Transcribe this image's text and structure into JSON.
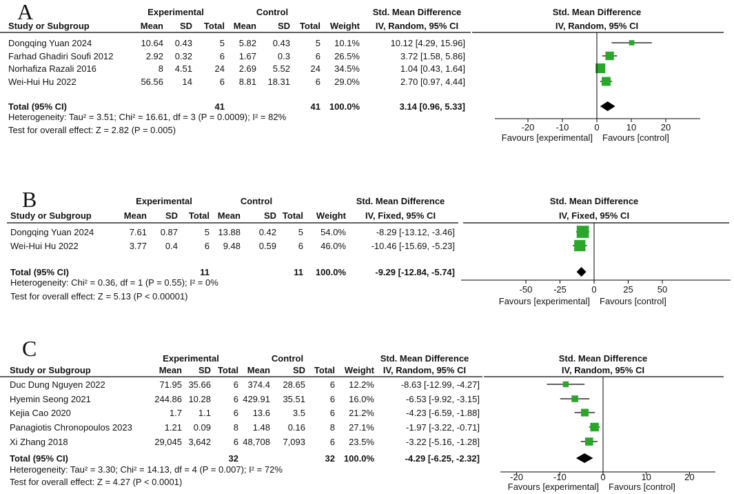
{
  "chart_data": [
    {
      "type": "forest",
      "panel": "A",
      "header": {
        "group1": "Experimental",
        "group2": "Control",
        "effect_measure": "Std. Mean Difference",
        "effect_method": "IV, Random, 95% CI",
        "plot_title": "Std. Mean Difference",
        "plot_method": "IV, Random, 95% CI",
        "cols": [
          "Study or Subgroup",
          "Mean",
          "SD",
          "Total",
          "Mean",
          "SD",
          "Total",
          "Weight"
        ]
      },
      "studies": [
        {
          "name": "Dongqing Yuan 2024",
          "e_mean": "10.64",
          "e_sd": "0.43",
          "e_total": "5",
          "c_mean": "5.82",
          "c_sd": "0.43",
          "c_total": "5",
          "weight": "10.1%",
          "ci_text": "10.12 [4.29, 15.96]",
          "est": 10.12,
          "lo": 4.29,
          "hi": 15.96
        },
        {
          "name": "Farhad Ghadiri Soufi 2012",
          "e_mean": "2.92",
          "e_sd": "0.32",
          "e_total": "6",
          "c_mean": "1.67",
          "c_sd": "0.3",
          "c_total": "6",
          "weight": "26.5%",
          "ci_text": "3.72 [1.58, 5.86]",
          "est": 3.72,
          "lo": 1.58,
          "hi": 5.86
        },
        {
          "name": "Norhafiza Razali 2016",
          "e_mean": "8",
          "e_sd": "4.51",
          "e_total": "24",
          "c_mean": "2.69",
          "c_sd": "5.52",
          "c_total": "24",
          "weight": "34.5%",
          "ci_text": "1.04 [0.43, 1.64]",
          "est": 1.04,
          "lo": 0.43,
          "hi": 1.64
        },
        {
          "name": "Wei-Hui Hu 2022",
          "e_mean": "56.56",
          "e_sd": "14",
          "e_total": "6",
          "c_mean": "8.81",
          "c_sd": "18.31",
          "c_total": "6",
          "weight": "29.0%",
          "ci_text": "2.70 [0.97, 4.44]",
          "est": 2.7,
          "lo": 0.97,
          "hi": 4.44
        }
      ],
      "total": {
        "label": "Total (95% CI)",
        "e_total": "41",
        "c_total": "41",
        "weight": "100.0%",
        "ci_text": "3.14 [0.96, 5.33]",
        "est": 3.14,
        "lo": 0.96,
        "hi": 5.33
      },
      "heterogeneity": "Heterogeneity: Tau² = 3.51; Chi² = 16.61, df = 3 (P = 0.0009); I² = 82%",
      "overall_test": "Test for overall effect: Z = 2.82 (P = 0.005)",
      "axis": {
        "ticks": [
          -20,
          -10,
          0,
          10,
          20
        ],
        "xlim": [
          -30,
          30
        ],
        "left_label": "Favours [experimental]",
        "right_label": "Favours [control]"
      }
    },
    {
      "type": "forest",
      "panel": "B",
      "header": {
        "group1": "Experimental",
        "group2": "Control",
        "effect_measure": "Std. Mean Difference",
        "effect_method": "IV, Fixed, 95% CI",
        "plot_title": "Std. Mean Difference",
        "plot_method": "IV, Fixed, 95% CI",
        "cols": [
          "Study or Subgroup",
          "Mean",
          "SD",
          "Total",
          "Mean",
          "SD",
          "Total",
          "Weight"
        ]
      },
      "studies": [
        {
          "name": "Dongqing Yuan 2024",
          "e_mean": "7.61",
          "e_sd": "0.87",
          "e_total": "5",
          "c_mean": "13.88",
          "c_sd": "0.42",
          "c_total": "5",
          "weight": "54.0%",
          "ci_text": "-8.29 [-13.12, -3.46]",
          "est": -8.29,
          "lo": -13.12,
          "hi": -3.46
        },
        {
          "name": "Wei-Hui Hu 2022",
          "e_mean": "3.77",
          "e_sd": "0.4",
          "e_total": "6",
          "c_mean": "9.48",
          "c_sd": "0.59",
          "c_total": "6",
          "weight": "46.0%",
          "ci_text": "-10.46 [-15.69, -5.23]",
          "est": -10.46,
          "lo": -15.69,
          "hi": -5.23
        }
      ],
      "total": {
        "label": "Total (95% CI)",
        "e_total": "11",
        "c_total": "11",
        "weight": "100.0%",
        "ci_text": "-9.29 [-12.84, -5.74]",
        "est": -9.29,
        "lo": -12.84,
        "hi": -5.74
      },
      "heterogeneity": "Heterogeneity: Chi² = 0.36, df = 1 (P = 0.55); I² = 0%",
      "overall_test": "Test for overall effect: Z = 5.13 (P < 0.00001)",
      "axis": {
        "ticks": [
          -50,
          -25,
          0,
          25,
          50
        ],
        "xlim": [
          -100,
          100
        ],
        "left_label": "Favours [experimental]",
        "right_label": "Favours [control]"
      }
    },
    {
      "type": "forest",
      "panel": "C",
      "header": {
        "group1": "Experimental",
        "group2": "Control",
        "effect_measure": "Std. Mean Difference",
        "effect_method": "IV, Random, 95% CI",
        "plot_title": "Std. Mean Difference",
        "plot_method": "IV, Random, 95% CI",
        "cols": [
          "Study or Subgroup",
          "Mean",
          "SD",
          "Total",
          "Mean",
          "SD",
          "Total",
          "Weight"
        ]
      },
      "studies": [
        {
          "name": "Duc Dung Nguyen 2022",
          "e_mean": "71.95",
          "e_sd": "35.66",
          "e_total": "6",
          "c_mean": "374.4",
          "c_sd": "28.65",
          "c_total": "6",
          "weight": "12.2%",
          "ci_text": "-8.63 [-12.99, -4.27]",
          "est": -8.63,
          "lo": -12.99,
          "hi": -4.27
        },
        {
          "name": "Hyemin Seong 2021",
          "e_mean": "244.86",
          "e_sd": "10.28",
          "e_total": "6",
          "c_mean": "429.91",
          "c_sd": "35.51",
          "c_total": "6",
          "weight": "16.0%",
          "ci_text": "-6.53 [-9.92, -3.15]",
          "est": -6.53,
          "lo": -9.92,
          "hi": -3.15
        },
        {
          "name": "Kejia Cao 2020",
          "e_mean": "1.7",
          "e_sd": "1.1",
          "e_total": "6",
          "c_mean": "13.6",
          "c_sd": "3.5",
          "c_total": "6",
          "weight": "21.2%",
          "ci_text": "-4.23 [-6.59, -1.88]",
          "est": -4.23,
          "lo": -6.59,
          "hi": -1.88
        },
        {
          "name": "Panagiotis Chronopoulos 2023",
          "e_mean": "1.21",
          "e_sd": "0.09",
          "e_total": "8",
          "c_mean": "1.48",
          "c_sd": "0.16",
          "c_total": "8",
          "weight": "27.1%",
          "ci_text": "-1.97 [-3.22, -0.71]",
          "est": -1.97,
          "lo": -3.22,
          "hi": -0.71
        },
        {
          "name": "Xi Zhang 2018",
          "e_mean": "29,045",
          "e_sd": "3,642",
          "e_total": "6",
          "c_mean": "48,708",
          "c_sd": "7,093",
          "c_total": "6",
          "weight": "23.5%",
          "ci_text": "-3.22 [-5.16, -1.28]",
          "est": -3.22,
          "lo": -5.16,
          "hi": -1.28
        }
      ],
      "total": {
        "label": "Total (95% CI)",
        "e_total": "32",
        "c_total": "32",
        "weight": "100.0%",
        "ci_text": "-4.29 [-6.25, -2.32]",
        "est": -4.29,
        "lo": -6.25,
        "hi": -2.32
      },
      "heterogeneity": "Heterogeneity: Tau² = 3.30; Chi² = 14.13, df = 4 (P = 0.007); I² = 72%",
      "overall_test": "Test for overall effect: Z = 4.27 (P < 0.0001)",
      "axis": {
        "ticks": [
          -20,
          -10,
          0,
          10,
          20
        ],
        "xlim": [
          -26,
          26
        ],
        "left_label": "Favours [experimental]",
        "right_label": "Favours [control]"
      }
    }
  ],
  "colors": {
    "marker": "#2aa62a",
    "diamond": "#000000",
    "text": "#111111",
    "rule": "#000000"
  }
}
